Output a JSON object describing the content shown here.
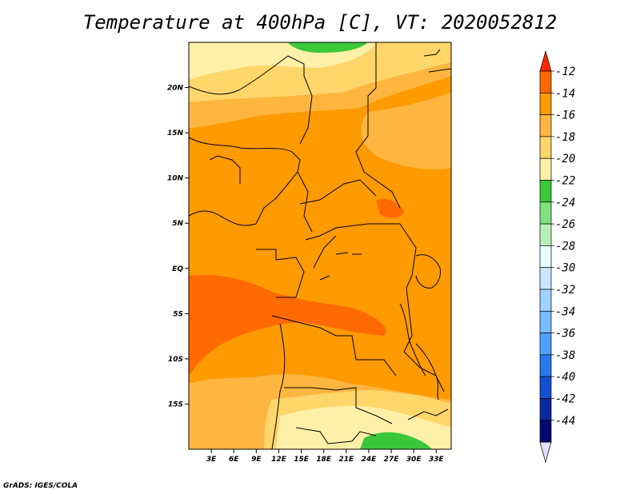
{
  "title": "Temperature at 400hPa [C], VT: 2020052812",
  "credit": "GrADS: IGES/COLA",
  "map": {
    "lon_range": [
      0,
      35
    ],
    "lat_range": [
      -20,
      25
    ],
    "lat_ticks": [
      {
        "value": 20,
        "label": "20N"
      },
      {
        "value": 15,
        "label": "15N"
      },
      {
        "value": 10,
        "label": "10N"
      },
      {
        "value": 5,
        "label": "5N"
      },
      {
        "value": 0,
        "label": "EQ"
      },
      {
        "value": -5,
        "label": "5S"
      },
      {
        "value": -10,
        "label": "10S"
      },
      {
        "value": -15,
        "label": "15S"
      }
    ],
    "lon_ticks": [
      {
        "value": 3,
        "label": "3E"
      },
      {
        "value": 6,
        "label": "6E"
      },
      {
        "value": 9,
        "label": "9E"
      },
      {
        "value": 12,
        "label": "12E"
      },
      {
        "value": 15,
        "label": "15E"
      },
      {
        "value": 18,
        "label": "18E"
      },
      {
        "value": 21,
        "label": "21E"
      },
      {
        "value": 24,
        "label": "24E"
      },
      {
        "value": 27,
        "label": "27E"
      },
      {
        "value": 30,
        "label": "30E"
      },
      {
        "value": 33,
        "label": "33E"
      }
    ],
    "fill_colors": {
      "band_m14_m12": "#ff6a00",
      "band_m16_m14": "#ff9a00",
      "band_m18_m16": "#ffb640",
      "band_m20_m18": "#ffd66a",
      "band_m22_m20": "#fff0a8",
      "band_m24_m22": "#3ac83a"
    }
  },
  "colorbar": {
    "labels": [
      "-12",
      "-14",
      "-16",
      "-18",
      "-20",
      "-22",
      "-24",
      "-26",
      "-28",
      "-30",
      "-32",
      "-34",
      "-36",
      "-38",
      "-40",
      "-42",
      "-44"
    ],
    "colors": [
      "#ff2800",
      "#ff6a00",
      "#ff9a00",
      "#ffb640",
      "#ffd66a",
      "#fff0a8",
      "#3ac83a",
      "#7ee07e",
      "#b6f0b6",
      "#e6ffff",
      "#c8e6ff",
      "#a0d2ff",
      "#78bcff",
      "#50a0ff",
      "#2878f0",
      "#1450d2",
      "#0a28a0",
      "#000a6e",
      "#e0e0f8"
    ]
  }
}
